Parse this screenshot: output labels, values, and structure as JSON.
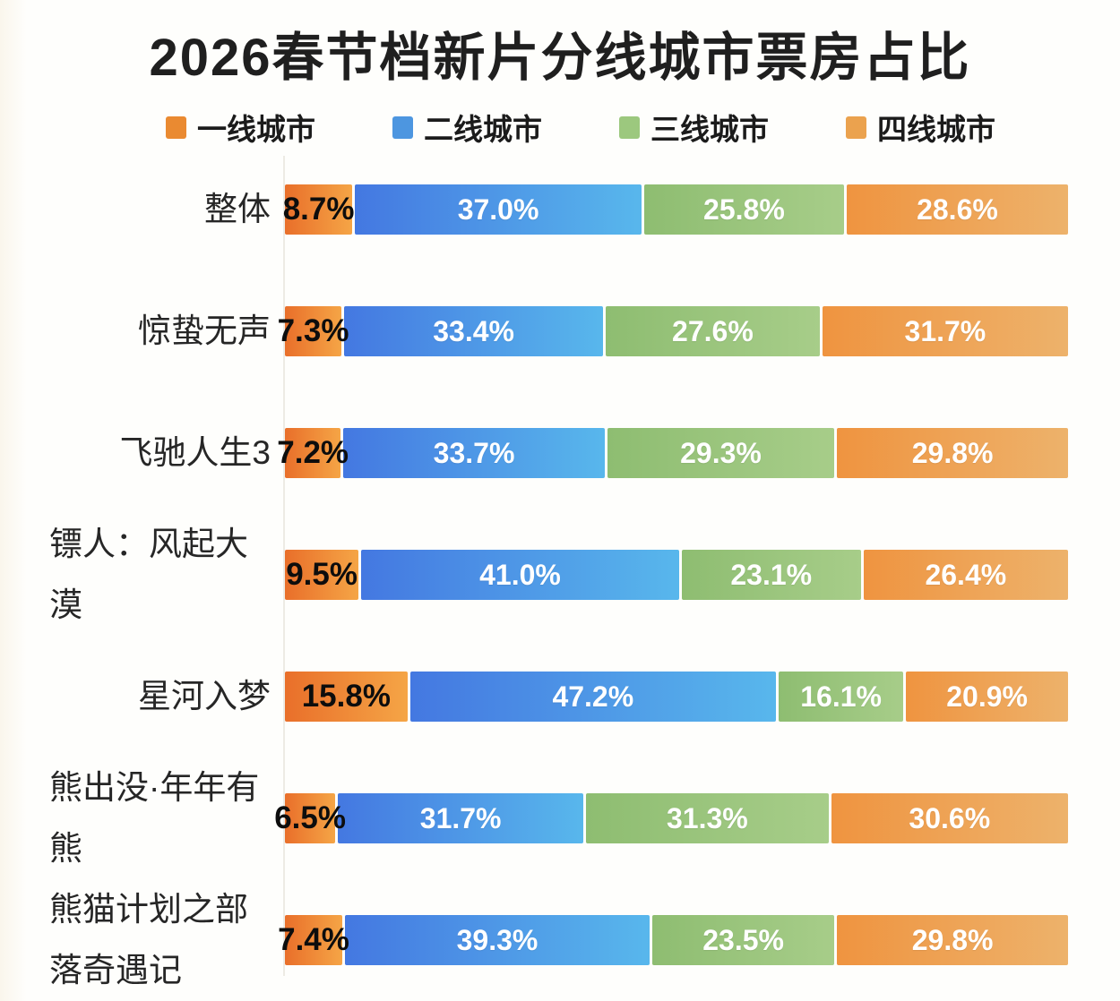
{
  "title": "2026春节档新片分线城市票房占比",
  "legend": [
    {
      "id": "tier1",
      "label": "一线城市",
      "swatch": "#ea8a31",
      "gradient": [
        "#e96f2a",
        "#f5a546"
      ],
      "value_text_color": "#0d0d0d"
    },
    {
      "id": "tier2",
      "label": "二线城市",
      "swatch": "#4d96e0",
      "gradient": [
        "#4478e1",
        "#58b7ec"
      ],
      "value_text_color": "#ffffff"
    },
    {
      "id": "tier3",
      "label": "三线城市",
      "swatch": "#9cc87e",
      "gradient": [
        "#8ebd71",
        "#a7cd89"
      ],
      "value_text_color": "#ffffff"
    },
    {
      "id": "tier4",
      "label": "四线城市",
      "swatch": "#eba24e",
      "gradient": [
        "#ef9440",
        "#edb26b"
      ],
      "value_text_color": "#ffffff"
    }
  ],
  "chart_data": {
    "type": "bar",
    "orientation": "horizontal",
    "stacked": true,
    "unit": "%",
    "xlim": [
      0,
      100
    ],
    "grid": false,
    "legend_position": "top",
    "value_labels": "inside",
    "title": "2026春节档新片分线城市票房占比",
    "categories": [
      "整体",
      "惊蛰无声",
      "飞驰人生3",
      "镖人：风起大漠",
      "星河入梦",
      "熊出没·年年有熊",
      "熊猫计划之部落奇遇记"
    ],
    "categories_display": [
      [
        "整体"
      ],
      [
        "惊蛰无声"
      ],
      [
        "飞驰人生3"
      ],
      [
        "镖人：风起大",
        "漠"
      ],
      [
        "星河入梦"
      ],
      [
        "熊出没·年年有",
        "熊"
      ],
      [
        "熊猫计划之部",
        "落奇遇记"
      ]
    ],
    "series": [
      {
        "name": "一线城市",
        "values": [
          8.7,
          7.3,
          7.2,
          9.5,
          15.8,
          6.5,
          7.4
        ]
      },
      {
        "name": "二线城市",
        "values": [
          37.0,
          33.4,
          33.7,
          41.0,
          47.2,
          31.7,
          39.3
        ]
      },
      {
        "name": "三线城市",
        "values": [
          25.8,
          27.6,
          29.3,
          23.1,
          16.1,
          31.3,
          23.5
        ]
      },
      {
        "name": "四线城市",
        "values": [
          28.6,
          31.7,
          29.8,
          26.4,
          20.9,
          30.6,
          29.8
        ]
      }
    ]
  }
}
